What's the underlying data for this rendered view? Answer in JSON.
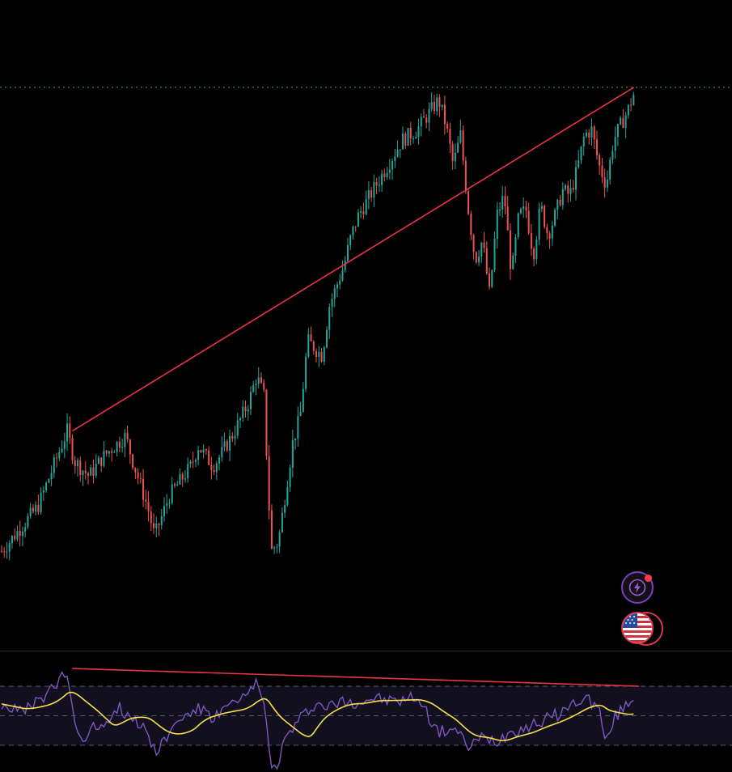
{
  "chart_data": [
    {
      "type": "candlestick",
      "panel": "price",
      "title": "",
      "xlabel": "",
      "ylabel": "",
      "x_range": [
        0,
        100
      ],
      "ylim": [
        0,
        100
      ],
      "grid": false,
      "price_line": 95.5,
      "anchors": [
        [
          0,
          3
        ],
        [
          5,
          12
        ],
        [
          9,
          27
        ],
        [
          10,
          21
        ],
        [
          12,
          18
        ],
        [
          14,
          22
        ],
        [
          17,
          26
        ],
        [
          18,
          21
        ],
        [
          20,
          12
        ],
        [
          21,
          6
        ],
        [
          23,
          14
        ],
        [
          26,
          20
        ],
        [
          27,
          24
        ],
        [
          29,
          20
        ],
        [
          30,
          22
        ],
        [
          32,
          27
        ],
        [
          34,
          33
        ],
        [
          35,
          38
        ],
        [
          36,
          34
        ],
        [
          37,
          3
        ],
        [
          38,
          5
        ],
        [
          39,
          15
        ],
        [
          40,
          25
        ],
        [
          41,
          30
        ],
        [
          42,
          45
        ],
        [
          44,
          42
        ],
        [
          45,
          52
        ],
        [
          47,
          60
        ],
        [
          48,
          66
        ],
        [
          49,
          70
        ],
        [
          51,
          75
        ],
        [
          53,
          80
        ],
        [
          55,
          85
        ],
        [
          57,
          87
        ],
        [
          59,
          91
        ],
        [
          60,
          93
        ],
        [
          61,
          88
        ],
        [
          62,
          80
        ],
        [
          63,
          86
        ],
        [
          64,
          72
        ],
        [
          65,
          61
        ],
        [
          66,
          65
        ],
        [
          67,
          54
        ],
        [
          68,
          70
        ],
        [
          69,
          74
        ],
        [
          70,
          58
        ],
        [
          71,
          70
        ],
        [
          72,
          71
        ],
        [
          73,
          62
        ],
        [
          74,
          72
        ],
        [
          75,
          66
        ],
        [
          76,
          70
        ],
        [
          77,
          75
        ],
        [
          78,
          74
        ],
        [
          79,
          79
        ],
        [
          80,
          86
        ],
        [
          81,
          87
        ],
        [
          82,
          80
        ],
        [
          83,
          76
        ],
        [
          84,
          85
        ],
        [
          86,
          91
        ],
        [
          87,
          95
        ]
      ],
      "series": [
        {
          "name": "",
          "type": "trendline",
          "points": [
            [
              9.7,
              27
            ],
            [
              86.8,
              95.5
            ]
          ],
          "color": "#e8334a"
        }
      ],
      "colors": {
        "up": "#26a69a",
        "down": "#ef5350",
        "trendline": "#e8334a",
        "price_line": "#26a69a"
      }
    },
    {
      "type": "line",
      "panel": "rsi",
      "title": "",
      "xlabel": "",
      "ylabel": "",
      "ylim": [
        20,
        80
      ],
      "levels": [
        70,
        50,
        30
      ],
      "band": [
        30,
        70
      ],
      "grid": false,
      "rsi_anchors": [
        [
          0,
          58
        ],
        [
          3,
          52
        ],
        [
          7,
          68
        ],
        [
          9,
          79
        ],
        [
          10,
          45
        ],
        [
          11,
          34
        ],
        [
          12,
          40
        ],
        [
          14,
          45
        ],
        [
          16,
          56
        ],
        [
          18,
          48
        ],
        [
          20,
          40
        ],
        [
          21,
          26
        ],
        [
          23,
          38
        ],
        [
          25,
          50
        ],
        [
          27,
          55
        ],
        [
          29,
          48
        ],
        [
          31,
          56
        ],
        [
          33,
          60
        ],
        [
          35,
          72
        ],
        [
          36,
          62
        ],
        [
          37,
          12
        ],
        [
          38,
          20
        ],
        [
          39,
          35
        ],
        [
          41,
          48
        ],
        [
          43,
          58
        ],
        [
          45,
          56
        ],
        [
          47,
          60
        ],
        [
          49,
          59
        ],
        [
          51,
          62
        ],
        [
          53,
          60
        ],
        [
          55,
          60
        ],
        [
          57,
          63
        ],
        [
          58,
          55
        ],
        [
          60,
          38
        ],
        [
          62,
          42
        ],
        [
          64,
          29
        ],
        [
          66,
          35
        ],
        [
          68,
          33
        ],
        [
          70,
          40
        ],
        [
          72,
          42
        ],
        [
          74,
          46
        ],
        [
          76,
          50
        ],
        [
          78,
          56
        ],
        [
          80,
          63
        ],
        [
          82,
          55
        ],
        [
          83,
          30
        ],
        [
          84,
          48
        ],
        [
          86,
          58
        ],
        [
          87,
          66
        ]
      ],
      "ma_smoothing": 6,
      "series": [
        {
          "name": "",
          "type": "trendline",
          "points": [
            [
              9.7,
              82
            ],
            [
              87.5,
              70
            ]
          ],
          "color": "#e8334a"
        }
      ],
      "colors": {
        "rsi": "#7e57c2",
        "ma": "#f5e04a",
        "band_fill": "#120f1e",
        "level": "#555a66",
        "trendline": "#e8334a"
      }
    }
  ],
  "overlay": {
    "alert_icon": "lightning-bolt-icon",
    "flag_icon": "us-flag-icon",
    "alert_color": "#7a3fbf",
    "badge_color": "#ff3b4a"
  }
}
